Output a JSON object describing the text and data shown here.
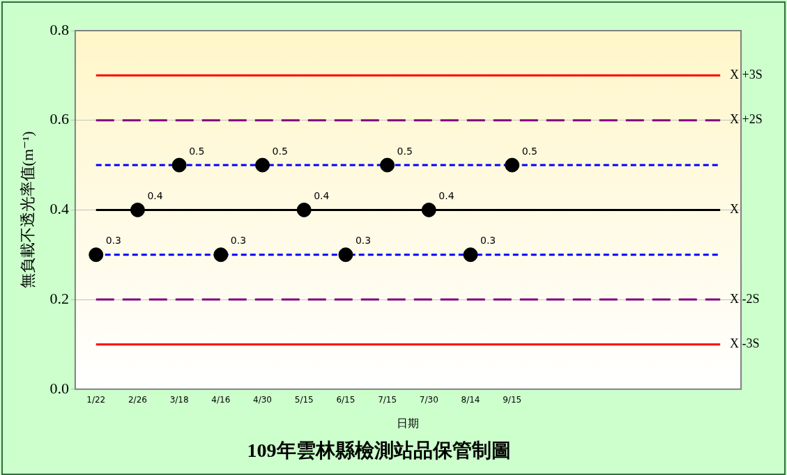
{
  "chart_data": {
    "type": "scatter",
    "title": "109年雲林縣檢測站品保管制圖",
    "xlabel": "日期",
    "ylabel": "無負載不透光率值(m⁻¹)",
    "categories": [
      "1/22",
      "2/26",
      "3/18",
      "4/16",
      "4/30",
      "5/15",
      "6/15",
      "7/15",
      "7/30",
      "8/14",
      "9/15",
      null,
      null,
      null,
      null,
      null
    ],
    "series": [
      {
        "color": "#000000",
        "values": [
          0.3,
          0.4,
          0.5,
          0.3,
          0.5,
          0.4,
          0.3,
          0.5,
          0.4,
          0.3,
          0.5,
          null,
          null,
          null,
          null,
          null
        ]
      }
    ],
    "data_labels": true,
    "marker": "circle",
    "ylim": [
      0,
      0.8
    ],
    "yticks": [
      {
        "value": 0,
        "label": "0.0"
      },
      {
        "value": 0.2,
        "label": "0.2"
      },
      {
        "value": 0.4,
        "label": "0.4"
      },
      {
        "value": 0.6,
        "label": "0.6"
      },
      {
        "value": 0.8,
        "label": "0.8"
      }
    ],
    "grid": "y",
    "ref_lines": [
      {
        "axis": "y",
        "value": 0.7,
        "label": "X +3S",
        "color": "#ff0000",
        "line_style": "solid"
      },
      {
        "axis": "y",
        "value": 0.6,
        "label": "X +2S",
        "color": "#800080",
        "line_style": "dashed"
      },
      {
        "axis": "y",
        "value": 0.5,
        "label": null,
        "color": "#0000ff",
        "line_style": "dotted"
      },
      {
        "axis": "y",
        "value": 0.4,
        "label": "X",
        "color": "#000000",
        "line_style": "solid"
      },
      {
        "axis": "y",
        "value": 0.3,
        "label": null,
        "color": "#0000ff",
        "line_style": "dotted"
      },
      {
        "axis": "y",
        "value": 0.2,
        "label": "X -2S",
        "color": "#800080",
        "line_style": "dashed"
      },
      {
        "axis": "y",
        "value": 0.1,
        "label": "X -3S",
        "color": "#ff0000",
        "line_style": "solid"
      }
    ]
  }
}
